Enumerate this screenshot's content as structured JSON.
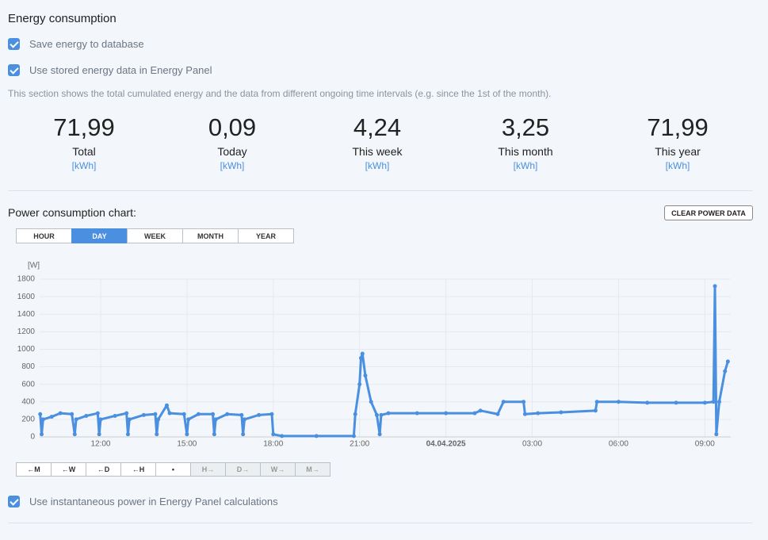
{
  "header": {
    "title": "Energy consumption"
  },
  "options": [
    {
      "label": "Save energy to database",
      "checked": true
    },
    {
      "label": "Use stored energy data in Energy Panel",
      "checked": true
    }
  ],
  "description": "This section shows the total cumulated energy and the data from different ongoing time intervals (e.g. since the 1st of the month).",
  "stats": [
    {
      "value": "71,99",
      "label": "Total",
      "unit": "[kWh]"
    },
    {
      "value": "0,09",
      "label": "Today",
      "unit": "[kWh]"
    },
    {
      "value": "4,24",
      "label": "This week",
      "unit": "[kWh]"
    },
    {
      "value": "3,25",
      "label": "This month",
      "unit": "[kWh]"
    },
    {
      "value": "71,99",
      "label": "This year",
      "unit": "[kWh]"
    }
  ],
  "chart_section": {
    "title": "Power consumption chart:",
    "clear_button": "CLEAR POWER DATA",
    "tabs": [
      "HOUR",
      "DAY",
      "WEEK",
      "MONTH",
      "YEAR"
    ],
    "active_tab": 1,
    "nav_buttons": [
      {
        "label": "←M",
        "enabled": true
      },
      {
        "label": "←W",
        "enabled": true
      },
      {
        "label": "←D",
        "enabled": true
      },
      {
        "label": "←H",
        "enabled": true
      },
      {
        "label": "•",
        "enabled": true
      },
      {
        "label": "H→",
        "enabled": false
      },
      {
        "label": "D→",
        "enabled": false
      },
      {
        "label": "W→",
        "enabled": false
      },
      {
        "label": "M→",
        "enabled": false
      }
    ]
  },
  "footer_option": {
    "label": "Use instantaneous power in Energy Panel calculations",
    "checked": true
  },
  "chart_data": {
    "type": "line",
    "y_label": "[W]",
    "color": "#4a8fe0",
    "grid": true,
    "xlim": [
      9.88,
      33.9
    ],
    "xticks": [
      {
        "value": 12,
        "label": "12:00"
      },
      {
        "value": 15,
        "label": "15:00"
      },
      {
        "value": 18,
        "label": "18:00"
      },
      {
        "value": 21,
        "label": "21:00"
      },
      {
        "value": 24,
        "label": "04.04.2025"
      },
      {
        "value": 27,
        "label": "03:00"
      },
      {
        "value": 30,
        "label": "06:00"
      },
      {
        "value": 33,
        "label": "09:00"
      }
    ],
    "ylim": [
      0,
      1800
    ],
    "yticks": [
      0,
      200,
      400,
      600,
      800,
      1000,
      1200,
      1400,
      1600,
      1800
    ],
    "series": [
      {
        "name": "Power",
        "x": [
          9.9,
          9.95,
          10.0,
          10.3,
          10.6,
          11.0,
          11.1,
          11.15,
          11.5,
          11.9,
          11.95,
          12.0,
          12.5,
          12.9,
          12.95,
          13.0,
          13.5,
          13.9,
          13.95,
          14.0,
          14.3,
          14.4,
          14.9,
          15.0,
          15.05,
          15.4,
          15.9,
          15.95,
          16.0,
          16.4,
          16.9,
          16.95,
          17.0,
          17.5,
          17.95,
          18.0,
          18.3,
          19.5,
          20.8,
          20.85,
          21.0,
          21.05,
          21.1,
          21.2,
          21.4,
          21.6,
          21.7,
          21.75,
          22.0,
          23,
          24,
          25,
          25.2,
          25.8,
          26.0,
          26.7,
          26.75,
          27.2,
          28,
          29.2,
          29.25,
          30,
          31,
          32,
          33,
          33.3,
          33.35,
          33.4,
          33.5,
          33.7,
          33.8
        ],
        "values": [
          260,
          30,
          200,
          230,
          270,
          260,
          30,
          200,
          240,
          270,
          30,
          200,
          240,
          270,
          30,
          200,
          250,
          260,
          30,
          200,
          360,
          270,
          260,
          30,
          200,
          260,
          260,
          30,
          200,
          260,
          250,
          30,
          200,
          250,
          260,
          30,
          10,
          10,
          10,
          260,
          600,
          900,
          950,
          700,
          400,
          250,
          30,
          250,
          270,
          270,
          270,
          270,
          300,
          260,
          400,
          400,
          260,
          270,
          280,
          300,
          400,
          400,
          390,
          390,
          390,
          400,
          1720,
          30,
          400,
          750,
          860
        ]
      }
    ]
  }
}
